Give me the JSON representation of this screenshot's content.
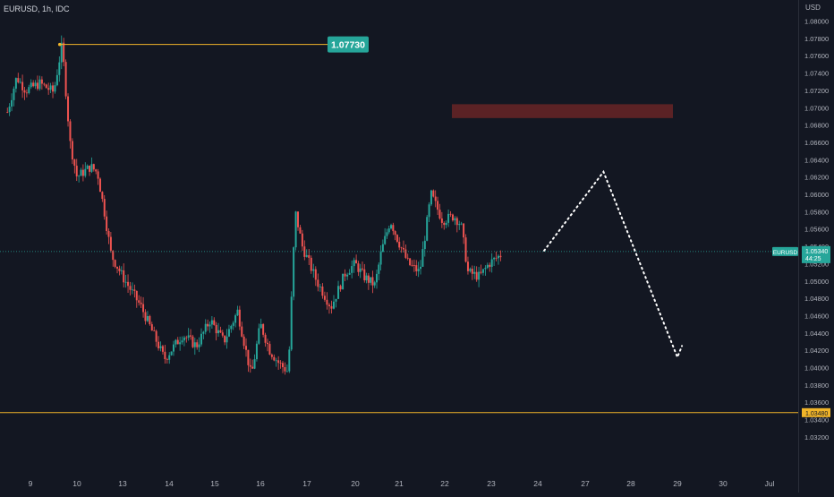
{
  "header": {
    "symbol_title": "EURUSD, 1h, IDC"
  },
  "price_axis": {
    "currency": "USD"
  },
  "chart_data": {
    "type": "candlestick",
    "x_ticks": [
      "9",
      "10",
      "13",
      "14",
      "15",
      "16",
      "17",
      "20",
      "21",
      "22",
      "23",
      "24",
      "27",
      "28",
      "29",
      "30",
      "Jul"
    ],
    "y_ticks": [
      "1.03200",
      "1.03400",
      "1.03600",
      "1.03800",
      "1.04000",
      "1.04200",
      "1.04400",
      "1.04600",
      "1.04800",
      "1.05000",
      "1.05200",
      "1.05400",
      "1.05600",
      "1.05800",
      "1.06000",
      "1.06200",
      "1.06400",
      "1.06600",
      "1.06800",
      "1.07000",
      "1.07200",
      "1.07400",
      "1.07600",
      "1.07800",
      "1.08000"
    ],
    "ylim": [
      1.031,
      1.0826
    ],
    "current_price": {
      "symbol": "EURUSD",
      "price": "1.05340",
      "countdown": "44:25"
    },
    "horizontal_line": {
      "price": "1.03480",
      "color": "#f0b429"
    },
    "high_marker": {
      "price": "1.07730",
      "color": "#26a69a"
    },
    "resistance_zone": {
      "from": 1.0688,
      "to": 1.0704,
      "color": "#5b2225"
    },
    "projection": [
      {
        "x": "24.4",
        "y": 1.0535
      },
      {
        "x": "27.4",
        "y": 1.0626
      },
      {
        "x": "29.0",
        "y": 1.0412
      },
      {
        "x": "29.1",
        "y": 1.0425
      }
    ],
    "trend_keypoints": [
      {
        "day": 8.5,
        "price": 1.0695
      },
      {
        "day": 8.7,
        "price": 1.0735
      },
      {
        "day": 8.9,
        "price": 1.072
      },
      {
        "day": 9.2,
        "price": 1.0728
      },
      {
        "day": 9.5,
        "price": 1.0718
      },
      {
        "day": 9.68,
        "price": 1.0773
      },
      {
        "day": 9.85,
        "price": 1.066
      },
      {
        "day": 10.0,
        "price": 1.062
      },
      {
        "day": 10.3,
        "price": 1.0632
      },
      {
        "day": 10.45,
        "price": 1.0625
      },
      {
        "day": 10.6,
        "price": 1.058
      },
      {
        "day": 10.75,
        "price": 1.053
      },
      {
        "day": 11.0,
        "price": 1.0505
      },
      {
        "day": 11.4,
        "price": 1.047
      },
      {
        "day": 11.9,
        "price": 1.041
      },
      {
        "day": 12.3,
        "price": 1.0438
      },
      {
        "day": 12.6,
        "price": 1.0425
      },
      {
        "day": 12.9,
        "price": 1.0455
      },
      {
        "day": 13.2,
        "price": 1.043
      },
      {
        "day": 13.5,
        "price": 1.0465
      },
      {
        "day": 13.8,
        "price": 1.039
      },
      {
        "day": 14.0,
        "price": 1.045
      },
      {
        "day": 14.2,
        "price": 1.042
      },
      {
        "day": 14.4,
        "price": 1.0405
      },
      {
        "day": 14.6,
        "price": 1.0395
      },
      {
        "day": 14.75,
        "price": 1.058
      },
      {
        "day": 14.9,
        "price": 1.054
      },
      {
        "day": 15.2,
        "price": 1.05
      },
      {
        "day": 15.5,
        "price": 1.047
      },
      {
        "day": 15.8,
        "price": 1.051
      },
      {
        "day": 16.0,
        "price": 1.052
      },
      {
        "day": 16.2,
        "price": 1.0505
      },
      {
        "day": 16.45,
        "price": 1.0495
      },
      {
        "day": 16.6,
        "price": 1.0535
      },
      {
        "day": 16.8,
        "price": 1.057
      },
      {
        "day": 16.95,
        "price": 1.055
      },
      {
        "day": 17.2,
        "price": 1.052
      },
      {
        "day": 17.45,
        "price": 1.051
      },
      {
        "day": 17.7,
        "price": 1.06
      },
      {
        "day": 17.95,
        "price": 1.057
      },
      {
        "day": 18.2,
        "price": 1.0575
      },
      {
        "day": 18.35,
        "price": 1.0565
      },
      {
        "day": 18.5,
        "price": 1.051
      },
      {
        "day": 18.75,
        "price": 1.0505
      },
      {
        "day": 18.95,
        "price": 1.052
      },
      {
        "day": 19.2,
        "price": 1.053
      }
    ]
  }
}
